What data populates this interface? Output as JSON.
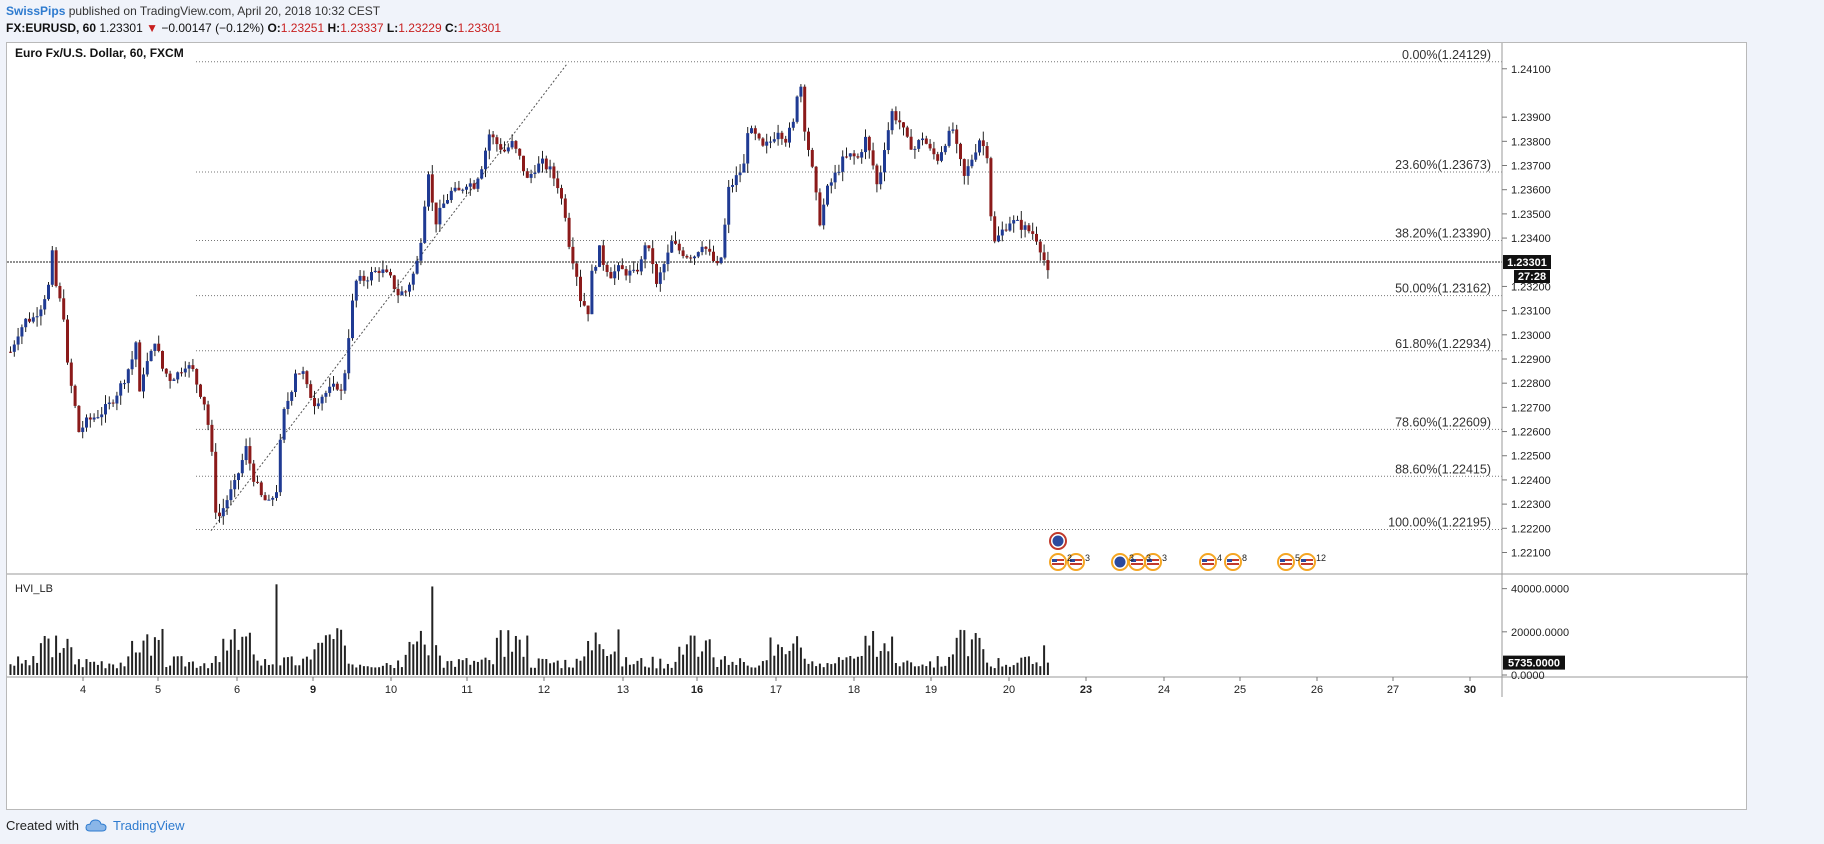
{
  "header": {
    "author": "SwissPips",
    "published_text": "published on TradingView.com, April 20, 2018 10:32 CEST"
  },
  "ticker": {
    "symbol": "FX:EURUSD, 60",
    "last": "1.23301",
    "change_arrow": "▼",
    "change": "−0.00147 (−0.12%)",
    "open_label": "O:",
    "open": "1.23251",
    "high_label": "H:",
    "high": "1.23337",
    "low_label": "L:",
    "low": "1.23229",
    "close_label": "C:",
    "close": "1.23301",
    "down_color": "#c81e1e"
  },
  "chart_data": {
    "type": "candlestick",
    "title": "Euro Fx/U.S. Dollar, 60, FXCM",
    "x_ticks": [
      "4",
      "5",
      "6",
      "9",
      "10",
      "11",
      "12",
      "13",
      "16",
      "17",
      "18",
      "19",
      "20",
      "23",
      "24",
      "25",
      "26",
      "27",
      "30"
    ],
    "x_ticks_bold": [
      "9",
      "16",
      "23",
      "30"
    ],
    "y_ticks": [
      "1.24100",
      "1.23900",
      "1.23800",
      "1.23700",
      "1.23600",
      "1.23500",
      "1.23400",
      "1.23200",
      "1.23100",
      "1.23000",
      "1.22900",
      "1.22800",
      "1.22700",
      "1.22600",
      "1.22500",
      "1.22400",
      "1.22300",
      "1.22200",
      "1.22100"
    ],
    "ylim": [
      1.2204,
      1.2419
    ],
    "price_marker": "1.23301",
    "countdown": "27:28",
    "fibonacci": [
      {
        "label": "0.00%(1.24129)",
        "price": 1.24129
      },
      {
        "label": "23.60%(1.23673)",
        "price": 1.23673
      },
      {
        "label": "38.20%(1.23390)",
        "price": 1.2339
      },
      {
        "label": "50.00%(1.23162)",
        "price": 1.23162
      },
      {
        "label": "61.80%(1.22934)",
        "price": 1.22934
      },
      {
        "label": "78.60%(1.22609)",
        "price": 1.22609
      },
      {
        "label": "88.60%(1.22415)",
        "price": 1.22415
      },
      {
        "label": "100.00%(1.22195)",
        "price": 1.22195
      }
    ],
    "path": [
      [
        0,
        1.2293
      ],
      [
        2,
        1.2301
      ],
      [
        4,
        1.2306
      ],
      [
        6,
        1.2307
      ],
      [
        8,
        1.2312
      ],
      [
        10,
        1.232
      ],
      [
        11,
        1.2333
      ],
      [
        12,
        1.232
      ],
      [
        14,
        1.2308
      ],
      [
        15,
        1.2287
      ],
      [
        17,
        1.227
      ],
      [
        18,
        1.226
      ],
      [
        20,
        1.2264
      ],
      [
        22,
        1.2266
      ],
      [
        24,
        1.2268
      ],
      [
        26,
        1.2271
      ],
      [
        28,
        1.2276
      ],
      [
        30,
        1.2282
      ],
      [
        32,
        1.229
      ],
      [
        33,
        1.2297
      ],
      [
        34,
        1.2275
      ],
      [
        35,
        1.2285
      ],
      [
        37,
        1.2292
      ],
      [
        38,
        1.2298
      ],
      [
        40,
        1.2286
      ],
      [
        42,
        1.2282
      ],
      [
        44,
        1.2284
      ],
      [
        46,
        1.2288
      ],
      [
        48,
        1.2285
      ],
      [
        49,
        1.228
      ],
      [
        51,
        1.2272
      ],
      [
        52,
        1.2263
      ],
      [
        53,
        1.225
      ],
      [
        54,
        1.2228
      ],
      [
        55,
        1.2225
      ],
      [
        57,
        1.2232
      ],
      [
        59,
        1.2238
      ],
      [
        61,
        1.2248
      ],
      [
        62,
        1.2253
      ],
      [
        64,
        1.2241
      ],
      [
        66,
        1.2233
      ],
      [
        68,
        1.223
      ],
      [
        70,
        1.2236
      ],
      [
        71,
        1.2255
      ],
      [
        72,
        1.2268
      ],
      [
        74,
        1.2278
      ],
      [
        75,
        1.2285
      ],
      [
        77,
        1.2284
      ],
      [
        78,
        1.2278
      ],
      [
        80,
        1.2272
      ],
      [
        82,
        1.2275
      ],
      [
        84,
        1.2277
      ],
      [
        86,
        1.2279
      ],
      [
        87,
        1.2276
      ],
      [
        88,
        1.2285
      ],
      [
        89,
        1.23
      ],
      [
        90,
        1.2313
      ],
      [
        91,
        1.2322
      ],
      [
        93,
        1.2323
      ],
      [
        95,
        1.2325
      ],
      [
        97,
        1.2327
      ],
      [
        98,
        1.2326
      ],
      [
        100,
        1.2323
      ],
      [
        102,
        1.2317
      ],
      [
        104,
        1.2318
      ],
      [
        106,
        1.2325
      ],
      [
        107,
        1.233
      ],
      [
        108,
        1.234
      ],
      [
        109,
        1.2355
      ],
      [
        110,
        1.2368
      ],
      [
        111,
        1.2354
      ],
      [
        112,
        1.2347
      ],
      [
        114,
        1.2354
      ],
      [
        116,
        1.2359
      ],
      [
        118,
        1.2359
      ],
      [
        120,
        1.2363
      ],
      [
        122,
        1.2362
      ],
      [
        124,
        1.237
      ],
      [
        126,
        1.2383
      ],
      [
        128,
        1.2379
      ],
      [
        130,
        1.2376
      ],
      [
        132,
        1.2379
      ],
      [
        134,
        1.2373
      ],
      [
        136,
        1.2364
      ],
      [
        138,
        1.2369
      ],
      [
        140,
        1.2371
      ],
      [
        142,
        1.2368
      ],
      [
        144,
        1.2362
      ],
      [
        146,
        1.235
      ],
      [
        147,
        1.2338
      ],
      [
        149,
        1.2325
      ],
      [
        150,
        1.2315
      ],
      [
        152,
        1.231
      ],
      [
        153,
        1.2325
      ],
      [
        155,
        1.2335
      ],
      [
        156,
        1.233
      ],
      [
        158,
        1.2325
      ],
      [
        160,
        1.2327
      ],
      [
        162,
        1.2326
      ],
      [
        164,
        1.2325
      ],
      [
        166,
        1.233
      ],
      [
        167,
        1.2338
      ],
      [
        169,
        1.233
      ],
      [
        170,
        1.232
      ],
      [
        171,
        1.2325
      ],
      [
        173,
        1.2333
      ],
      [
        174,
        1.2338
      ],
      [
        176,
        1.2335
      ],
      [
        178,
        1.2333
      ],
      [
        180,
        1.2333
      ],
      [
        182,
        1.2338
      ],
      [
        184,
        1.2333
      ],
      [
        186,
        1.2328
      ],
      [
        187,
        1.2332
      ],
      [
        188,
        1.2345
      ],
      [
        189,
        1.236
      ],
      [
        191,
        1.2365
      ],
      [
        193,
        1.237
      ],
      [
        194,
        1.2385
      ],
      [
        196,
        1.2382
      ],
      [
        198,
        1.2377
      ],
      [
        200,
        1.238
      ],
      [
        202,
        1.2385
      ],
      [
        204,
        1.2381
      ],
      [
        206,
        1.2387
      ],
      [
        207,
        1.24
      ],
      [
        208,
        1.2403
      ],
      [
        209,
        1.2386
      ],
      [
        211,
        1.2368
      ],
      [
        212,
        1.2357
      ],
      [
        213,
        1.2347
      ],
      [
        215,
        1.236
      ],
      [
        217,
        1.2366
      ],
      [
        219,
        1.2372
      ],
      [
        221,
        1.2374
      ],
      [
        223,
        1.2373
      ],
      [
        225,
        1.2381
      ],
      [
        227,
        1.237
      ],
      [
        228,
        1.2362
      ],
      [
        229,
        1.2368
      ],
      [
        230,
        1.2378
      ],
      [
        232,
        1.2392
      ],
      [
        234,
        1.2388
      ],
      [
        236,
        1.238
      ],
      [
        238,
        1.2377
      ],
      [
        240,
        1.2382
      ],
      [
        242,
        1.2376
      ],
      [
        244,
        1.2373
      ],
      [
        246,
        1.238
      ],
      [
        248,
        1.2385
      ],
      [
        249,
        1.2377
      ],
      [
        251,
        1.2365
      ],
      [
        253,
        1.2373
      ],
      [
        255,
        1.2381
      ],
      [
        257,
        1.2375
      ],
      [
        258,
        1.235
      ],
      [
        259,
        1.2338
      ],
      [
        261,
        1.2343
      ],
      [
        263,
        1.2347
      ],
      [
        265,
        1.2346
      ],
      [
        267,
        1.2344
      ],
      [
        269,
        1.2342
      ],
      [
        270,
        1.234
      ],
      [
        271,
        1.2336
      ],
      [
        272,
        1.2331
      ],
      [
        273,
        1.2325
      ]
    ],
    "indicator": {
      "name": "HVI_LB",
      "y_ticks": [
        "40000.0000",
        "20000.0000",
        "0.0000"
      ],
      "ylim": [
        0,
        44000
      ],
      "last_value": "5735.0000"
    },
    "event_icons": [
      {
        "label": "",
        "country": "eu"
      },
      {
        "label": "2",
        "country": "us"
      },
      {
        "label": "3",
        "country": "us"
      },
      {
        "label": "3",
        "country": "eu"
      },
      {
        "label": "3",
        "country": "us"
      },
      {
        "label": "3",
        "country": "us"
      },
      {
        "label": "4",
        "country": "us"
      },
      {
        "label": "8",
        "country": "us"
      },
      {
        "label": "5",
        "country": "us"
      },
      {
        "label": "12",
        "country": "us"
      }
    ],
    "colors": {
      "up": "#1f3a93",
      "down": "#8b1a1a",
      "wick": "#222222",
      "grid_fib": "#777777",
      "volume": "#222222",
      "marker_bg": "#111111"
    }
  },
  "footer": {
    "created_with": "Created with",
    "brand": "TradingView"
  }
}
